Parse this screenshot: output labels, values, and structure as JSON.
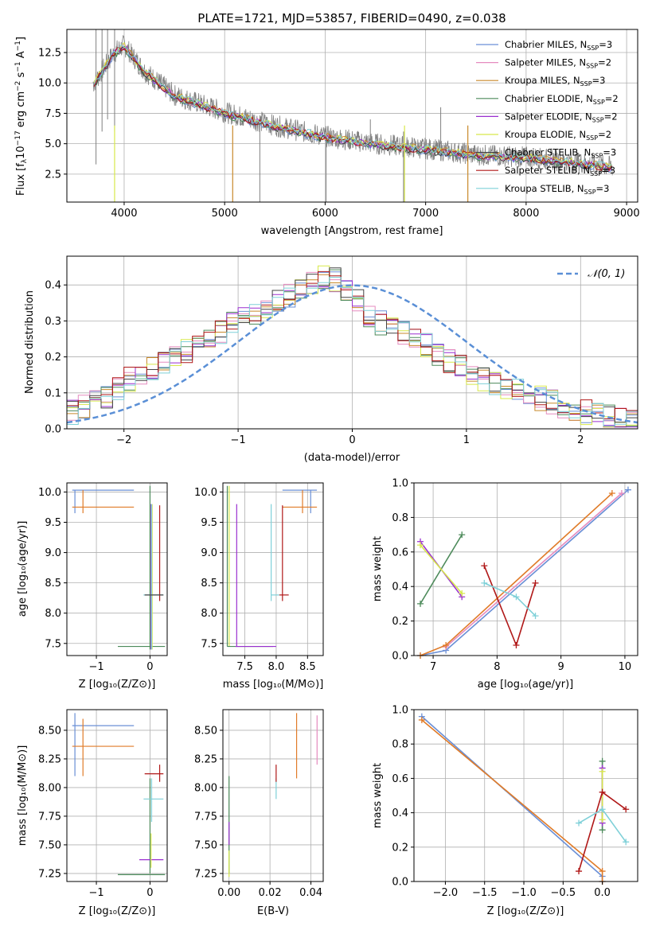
{
  "colors": {
    "Chabrier MILES": "#6a8fd6",
    "Salpeter MILES": "#e58bbf",
    "Kroupa MILES": "#c8892a",
    "Chabrier ELODIE": "#4c8a5a",
    "Salpeter ELODIE": "#9a2fd0",
    "Kroupa ELODIE": "#d7e84a",
    "Chabrier STELIB": "#444444",
    "Salpeter STELIB": "#b01818",
    "Kroupa STELIB": "#7fd0d8",
    "normal": "#5a8fd6",
    "orange": "#e07b28",
    "data": "#808080"
  },
  "chart_data": [
    {
      "id": "spectrum",
      "type": "line",
      "title": "PLATE=1721, MJD=53857, FIBERID=0490, z=0.038",
      "xlabel": "wavelength [Angstrom, rest frame]",
      "ylabel": "Flux [fλ10⁻¹⁷ erg cm⁻² s⁻¹ A⁻¹]",
      "xlim": [
        3430,
        9110
      ],
      "ylim": [
        0.2,
        14.4
      ],
      "xticks": [
        "4000",
        "5000",
        "6000",
        "7000",
        "8000",
        "9000"
      ],
      "yticks": [
        "2.5",
        "5.0",
        "7.5",
        "10.0",
        "12.5"
      ],
      "xtick_values": [
        4000,
        5000,
        6000,
        7000,
        8000,
        9000
      ],
      "ytick_values": [
        2.5,
        5.0,
        7.5,
        10.0,
        12.5
      ],
      "data_envelope": {
        "x": [
          3700,
          3900,
          4000,
          4200,
          4500,
          5000,
          5500,
          6000,
          6500,
          7000,
          7500,
          8000,
          8500,
          8850
        ],
        "y": [
          10.0,
          12.5,
          13.1,
          11.0,
          9.0,
          7.6,
          6.5,
          5.6,
          5.0,
          4.6,
          4.1,
          3.9,
          3.5,
          3.1
        ]
      },
      "legend": {
        "placement": "upper right",
        "entries": [
          {
            "label": "Chabrier MILES, N",
            "sub": "SSP",
            "suffix": "=3"
          },
          {
            "label": "Salpeter MILES, N",
            "sub": "SSP",
            "suffix": "=2"
          },
          {
            "label": "Kroupa MILES, N",
            "sub": "SSP",
            "suffix": "=3"
          },
          {
            "label": "Chabrier ELODIE, N",
            "sub": "SSP",
            "suffix": "=2"
          },
          {
            "label": "Salpeter ELODIE, N",
            "sub": "SSP",
            "suffix": "=2"
          },
          {
            "label": "Kroupa ELODIE, N",
            "sub": "SSP",
            "suffix": "=2"
          },
          {
            "label": "Chabrier STELIB, N",
            "sub": "SSP",
            "suffix": "=3"
          },
          {
            "label": "Salpeter STELIB, N",
            "sub": "SSP",
            "suffix": "=3"
          },
          {
            "label": "Kroupa STELIB, N",
            "sub": "SSP",
            "suffix": "=3"
          }
        ]
      }
    },
    {
      "id": "residuals",
      "type": "line",
      "xlabel": "(data-model)/error",
      "ylabel": "Normed distribution",
      "xlim": [
        -2.5,
        2.5
      ],
      "ylim": [
        0,
        0.48
      ],
      "xticks": [
        "−2",
        "−1",
        "0",
        "1",
        "2"
      ],
      "xtick_values": [
        -2,
        -1,
        0,
        1,
        2
      ],
      "yticks": [
        "0.0",
        "0.1",
        "0.2",
        "0.3",
        "0.4"
      ],
      "ytick_values": [
        0.0,
        0.1,
        0.2,
        0.3,
        0.4
      ],
      "legend": {
        "placement": "upper right",
        "label": "𝒩(0, 1)"
      },
      "histogram_profile": {
        "x": [
          -2.5,
          -2.2,
          -1.9,
          -1.6,
          -1.3,
          -1.0,
          -0.7,
          -0.4,
          -0.2,
          0.0,
          0.2,
          0.5,
          0.8,
          1.1,
          1.4,
          1.7,
          2.0,
          2.3,
          2.5
        ],
        "y": [
          0.04,
          0.08,
          0.15,
          0.19,
          0.24,
          0.3,
          0.34,
          0.4,
          0.43,
          0.37,
          0.3,
          0.26,
          0.2,
          0.14,
          0.11,
          0.08,
          0.05,
          0.03,
          0.02
        ]
      }
    },
    {
      "id": "age_vs_Z",
      "type": "scatter",
      "xlabel": "Z [log₁₀(Z/Z⊙)]",
      "ylabel": "age  [log₁₀(age/yr)]",
      "xlim": [
        -1.55,
        0.32
      ],
      "ylim": [
        7.3,
        10.15
      ],
      "xticks": [
        "−1",
        "0"
      ],
      "xtick_values": [
        -1,
        0
      ],
      "yticks": [
        "7.5",
        "8.0",
        "8.5",
        "9.0",
        "9.5",
        "10.0"
      ],
      "ytick_values": [
        7.5,
        8.0,
        8.5,
        9.0,
        9.5,
        10.0
      ]
    },
    {
      "id": "age_vs_mass",
      "type": "scatter",
      "xlabel": "mass [log₁₀(M/M⊙)]",
      "xlim": [
        7.15,
        8.75
      ],
      "ylim": [
        7.3,
        10.15
      ],
      "xticks": [
        "7.5",
        "8.0",
        "8.5"
      ],
      "xtick_values": [
        7.5,
        8.0,
        8.5
      ],
      "yticks": [
        "7.5",
        "8.0",
        "8.5",
        "9.0",
        "9.5",
        "10.0"
      ],
      "ytick_values": [
        7.5,
        8.0,
        8.5,
        9.0,
        9.5,
        10.0
      ]
    },
    {
      "id": "weight_vs_age",
      "type": "line",
      "xlabel": "age  [log₁₀(age/yr)]",
      "ylabel": "mass weight",
      "xlim": [
        6.7,
        10.2
      ],
      "ylim": [
        0.0,
        1.0
      ],
      "xticks": [
        "7",
        "8",
        "9",
        "10"
      ],
      "xtick_values": [
        7,
        8,
        9,
        10
      ],
      "yticks": [
        "0.0",
        "0.2",
        "0.4",
        "0.6",
        "0.8",
        "1.0"
      ],
      "ytick_values": [
        0.0,
        0.2,
        0.4,
        0.6,
        0.8,
        1.0
      ],
      "series": [
        {
          "color": "Chabrier MILES",
          "x": [
            6.8,
            7.2,
            10.05
          ],
          "y": [
            0.0,
            0.03,
            0.96
          ]
        },
        {
          "color": "Salpeter MILES",
          "x": [
            7.2,
            9.95
          ],
          "y": [
            0.05,
            0.94
          ]
        },
        {
          "color": "orange",
          "x": [
            6.8,
            7.2,
            9.8
          ],
          "y": [
            0.0,
            0.06,
            0.94
          ]
        },
        {
          "color": "Chabrier ELODIE",
          "x": [
            6.8,
            7.45
          ],
          "y": [
            0.3,
            0.7
          ]
        },
        {
          "color": "Salpeter ELODIE",
          "x": [
            6.8,
            7.45
          ],
          "y": [
            0.66,
            0.34
          ]
        },
        {
          "color": "Kroupa ELODIE",
          "x": [
            6.8,
            7.45
          ],
          "y": [
            0.64,
            0.36
          ]
        },
        {
          "color": "Salpeter STELIB",
          "x": [
            7.8,
            8.3,
            8.6
          ],
          "y": [
            0.52,
            0.06,
            0.42
          ]
        },
        {
          "color": "Kroupa STELIB",
          "x": [
            7.8,
            8.3,
            8.6
          ],
          "y": [
            0.42,
            0.34,
            0.23
          ]
        }
      ]
    },
    {
      "id": "mass_vs_Z",
      "type": "scatter",
      "xlabel": "Z [log₁₀(Z/Z⊙)]",
      "ylabel": "mass [log₁₀(M/M⊙)]",
      "xlim": [
        -1.55,
        0.32
      ],
      "ylim": [
        7.18,
        8.68
      ],
      "xticks": [
        "−1",
        "0"
      ],
      "xtick_values": [
        -1,
        0
      ],
      "yticks": [
        "7.25",
        "7.50",
        "7.75",
        "8.00",
        "8.25",
        "8.50"
      ],
      "ytick_values": [
        7.25,
        7.5,
        7.75,
        8.0,
        8.25,
        8.5
      ]
    },
    {
      "id": "mass_vs_ebv",
      "type": "scatter",
      "xlabel": "E(B-V)",
      "xlim": [
        -0.003,
        0.046
      ],
      "ylim": [
        7.18,
        8.68
      ],
      "xticks": [
        "0.00",
        "0.02",
        "0.04"
      ],
      "xtick_values": [
        0.0,
        0.02,
        0.04
      ],
      "yticks": [
        "7.25",
        "7.50",
        "7.75",
        "8.00",
        "8.25",
        "8.50"
      ],
      "ytick_values": [
        7.25,
        7.5,
        7.75,
        8.0,
        8.25,
        8.5
      ]
    },
    {
      "id": "weight_vs_Z",
      "type": "line",
      "xlabel": "Z [log₁₀(Z/Z⊙)]",
      "ylabel": "mass weight",
      "xlim": [
        -2.4,
        0.45
      ],
      "ylim": [
        0.0,
        1.0
      ],
      "xticks": [
        "−2.0",
        "−1.5",
        "−1.0",
        "−0.5",
        "0.0"
      ],
      "xtick_values": [
        -2.0,
        -1.5,
        -1.0,
        -0.5,
        0.0
      ],
      "yticks": [
        "0.0",
        "0.2",
        "0.4",
        "0.6",
        "0.8",
        "1.0"
      ],
      "ytick_values": [
        0.0,
        0.2,
        0.4,
        0.6,
        0.8,
        1.0
      ],
      "series": [
        {
          "color": "Chabrier MILES",
          "x": [
            -2.3,
            0.0,
            0.0
          ],
          "y": [
            0.96,
            0.03,
            0.0
          ]
        },
        {
          "color": "orange",
          "x": [
            -2.3,
            0.0,
            0.0
          ],
          "y": [
            0.94,
            0.06,
            0.0
          ]
        },
        {
          "color": "Chabrier ELODIE",
          "x": [
            0.0,
            0.0
          ],
          "y": [
            0.3,
            0.7
          ]
        },
        {
          "color": "Salpeter ELODIE",
          "x": [
            0.0,
            0.0
          ],
          "y": [
            0.34,
            0.66
          ]
        },
        {
          "color": "Kroupa ELODIE",
          "x": [
            0.0,
            0.0
          ],
          "y": [
            0.36,
            0.64
          ]
        },
        {
          "color": "Salpeter STELIB",
          "x": [
            -0.3,
            0.0,
            0.3
          ],
          "y": [
            0.06,
            0.52,
            0.42
          ]
        },
        {
          "color": "Kroupa STELIB",
          "x": [
            -0.3,
            0.0,
            0.3
          ],
          "y": [
            0.34,
            0.42,
            0.23
          ]
        }
      ]
    }
  ]
}
